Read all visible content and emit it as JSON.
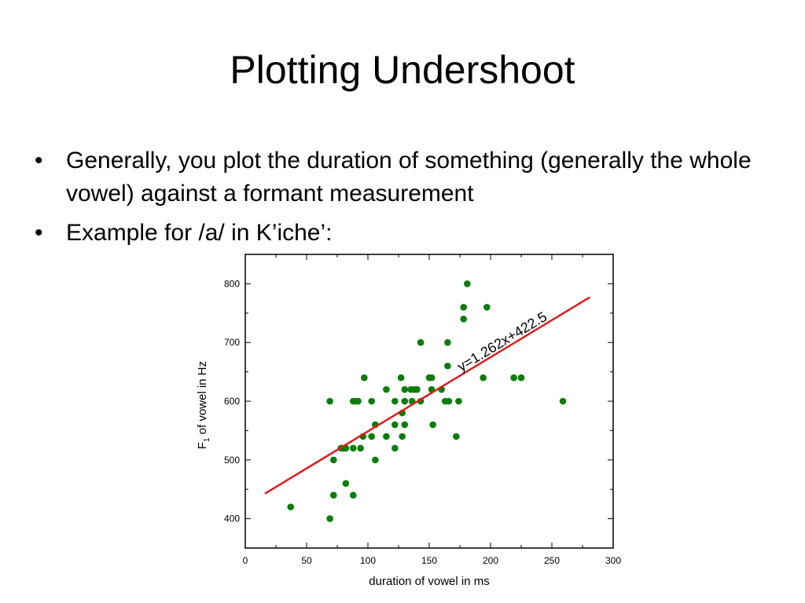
{
  "slide": {
    "title": "Plotting Undershoot",
    "bullets": [
      "Generally, you plot the duration of something (generally the whole vowel) against a formant measurement",
      "Example for /a/ in K’iche’:"
    ],
    "bullet_glyph": "•"
  },
  "chart_data": {
    "type": "scatter",
    "xlabel": "duration of vowel in ms",
    "ylabel_main": "F",
    "ylabel_sub": "1",
    "ylabel_rest": " of vowel in Hz",
    "xlim": [
      0,
      300
    ],
    "ylim": [
      350,
      850
    ],
    "xticks": [
      0,
      50,
      100,
      150,
      200,
      250,
      300
    ],
    "yticks": [
      400,
      500,
      600,
      700,
      800
    ],
    "grid": false,
    "point_color": "#0a7d0a",
    "points": [
      [
        37,
        420
      ],
      [
        69,
        400
      ],
      [
        69,
        600
      ],
      [
        72,
        500
      ],
      [
        72,
        440
      ],
      [
        78,
        520
      ],
      [
        80,
        520
      ],
      [
        82,
        520
      ],
      [
        82,
        460
      ],
      [
        88,
        520
      ],
      [
        88,
        440
      ],
      [
        88,
        600
      ],
      [
        90,
        600
      ],
      [
        92,
        600
      ],
      [
        94,
        520
      ],
      [
        96,
        540
      ],
      [
        97,
        640
      ],
      [
        103,
        600
      ],
      [
        103,
        540
      ],
      [
        106,
        560
      ],
      [
        106,
        500
      ],
      [
        115,
        620
      ],
      [
        115,
        540
      ],
      [
        122,
        600
      ],
      [
        122,
        560
      ],
      [
        122,
        520
      ],
      [
        127,
        640
      ],
      [
        128,
        580
      ],
      [
        128,
        540
      ],
      [
        130,
        620
      ],
      [
        130,
        600
      ],
      [
        130,
        560
      ],
      [
        135,
        620
      ],
      [
        136,
        600
      ],
      [
        138,
        620
      ],
      [
        140,
        620
      ],
      [
        143,
        700
      ],
      [
        143,
        600
      ],
      [
        150,
        640
      ],
      [
        152,
        620
      ],
      [
        152,
        640
      ],
      [
        153,
        560
      ],
      [
        160,
        620
      ],
      [
        163,
        600
      ],
      [
        165,
        700
      ],
      [
        165,
        660
      ],
      [
        166,
        600
      ],
      [
        172,
        540
      ],
      [
        174,
        600
      ],
      [
        178,
        760
      ],
      [
        178,
        740
      ],
      [
        181,
        800
      ],
      [
        194,
        640
      ],
      [
        197,
        760
      ],
      [
        219,
        640
      ],
      [
        225,
        640
      ],
      [
        259,
        600
      ]
    ],
    "fit_line": {
      "equation": "y=1.262x+422.5",
      "slope": 1.262,
      "intercept": 422.5,
      "x_start": 16,
      "x_end": 281,
      "color": "#e01b1b"
    }
  }
}
